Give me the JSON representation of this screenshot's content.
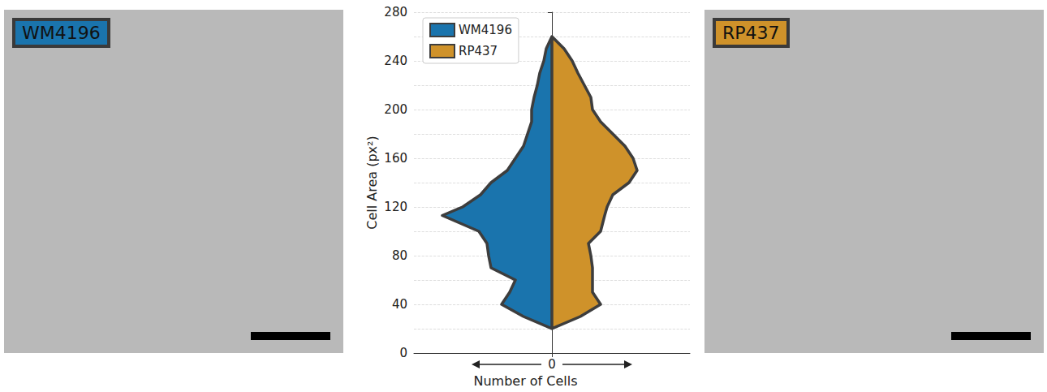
{
  "chart_data": {
    "type": "split_violin",
    "y_label": "Cell Area (px²)",
    "x_label": "Number of Cells",
    "y": [
      20,
      30,
      40,
      50,
      60,
      70,
      80,
      90,
      100,
      113,
      120,
      130,
      140,
      150,
      160,
      170,
      180,
      190,
      200,
      210,
      220,
      230,
      240,
      250,
      260
    ],
    "series": [
      {
        "name": "WM4196",
        "color": "#1a74ad",
        "values": [
          0,
          35,
          62,
          52,
          45,
          75,
          78,
          80,
          90,
          135,
          110,
          88,
          75,
          55,
          45,
          35,
          30,
          25,
          25,
          22,
          18,
          15,
          10,
          7,
          0
        ]
      },
      {
        "name": "RP437",
        "color": "#cf922a",
        "values": [
          0,
          35,
          60,
          50,
          50,
          50,
          48,
          45,
          60,
          65,
          68,
          75,
          95,
          105,
          100,
          90,
          75,
          60,
          50,
          48,
          40,
          32,
          25,
          15,
          0
        ]
      }
    ],
    "xlim": [
      0,
      170
    ],
    "xticks": [
      0
    ],
    "ylim": [
      0,
      280
    ],
    "yticks": [
      0,
      40,
      80,
      120,
      160,
      200,
      240,
      280
    ],
    "grid": true,
    "legend": "upper left"
  }
}
